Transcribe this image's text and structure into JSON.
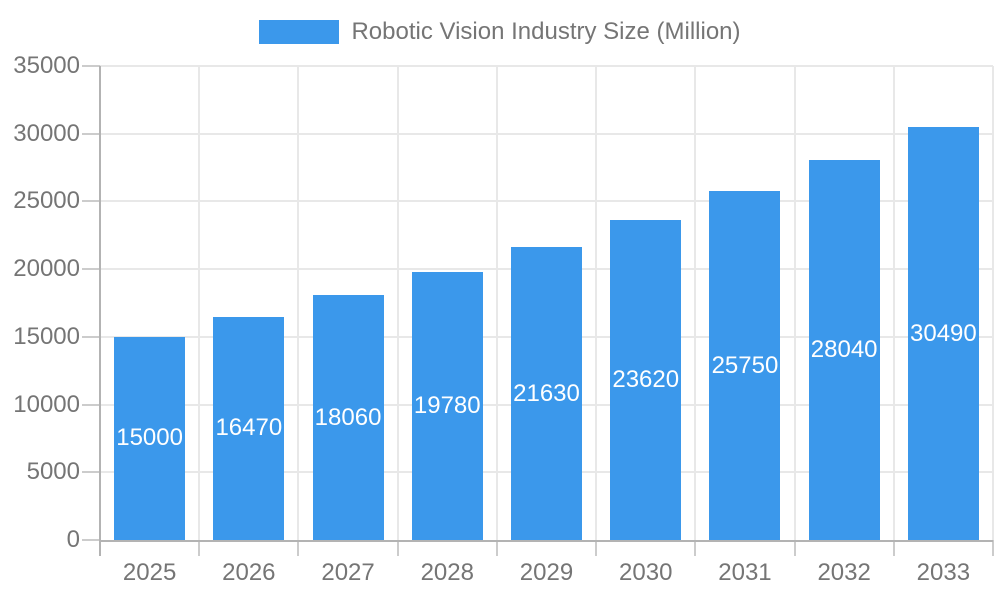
{
  "chart_data": {
    "type": "bar",
    "title": "Robotic Vision Industry Size (Million)",
    "categories": [
      "2025",
      "2026",
      "2027",
      "2028",
      "2029",
      "2030",
      "2031",
      "2032",
      "2033"
    ],
    "values": [
      15000,
      16470,
      18060,
      19780,
      21630,
      23620,
      25750,
      28040,
      30490
    ],
    "xlabel": "",
    "ylabel": "",
    "ylim": [
      0,
      35000
    ],
    "y_ticks": [
      0,
      5000,
      10000,
      15000,
      20000,
      25000,
      30000,
      35000
    ],
    "grid": true,
    "legend_position": "top-center",
    "bar_label_position": "inside-center",
    "colors": {
      "bar": "#3b98eb",
      "bar_label_text": "#ffffff",
      "axis_text": "#757575",
      "title_text": "#757575",
      "grid_line": "#e8e8e8",
      "axis_line": "#b3b3b3",
      "tick_line": "#cccccc",
      "background": "#ffffff"
    }
  }
}
